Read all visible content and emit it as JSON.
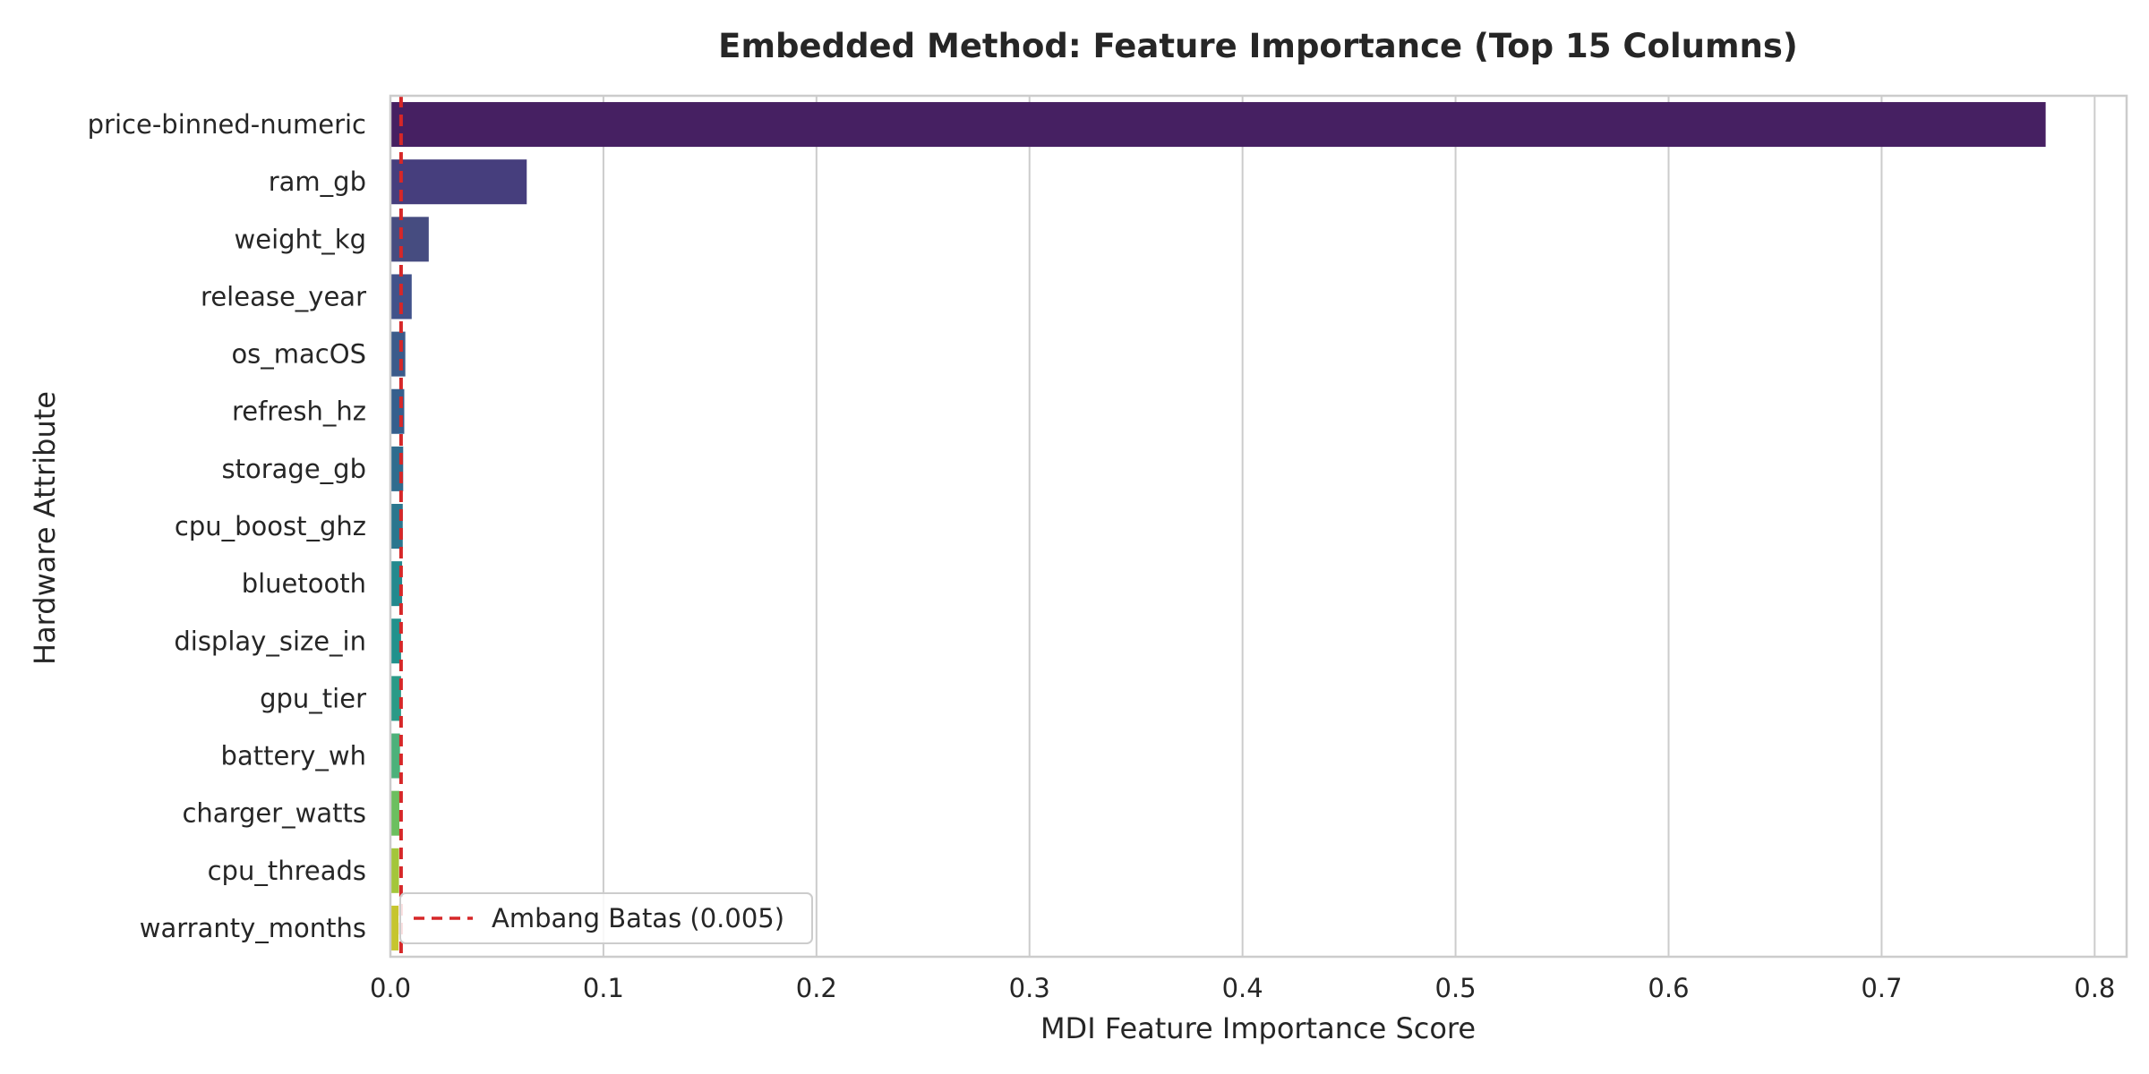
{
  "chart_data": {
    "type": "bar",
    "orientation": "horizontal",
    "title": "Embedded Method: Feature Importance (Top 15 Columns)",
    "xlabel": "MDI Feature Importance Score",
    "ylabel": "Hardware Attribute",
    "xlim": [
      0,
      0.815
    ],
    "xticks": [
      0.0,
      0.1,
      0.2,
      0.3,
      0.4,
      0.5,
      0.6,
      0.7,
      0.8
    ],
    "xtick_labels": [
      "0.0",
      "0.1",
      "0.2",
      "0.3",
      "0.4",
      "0.5",
      "0.6",
      "0.7",
      "0.8"
    ],
    "grid": "vertical",
    "categories": [
      "price-binned-numeric",
      "ram_gb",
      "weight_kg",
      "release_year",
      "os_macOS",
      "refresh_hz",
      "storage_gb",
      "cpu_boost_ghz",
      "bluetooth",
      "display_size_in",
      "gpu_tier",
      "battery_wh",
      "charger_watts",
      "cpu_threads",
      "warranty_months"
    ],
    "values": [
      0.777,
      0.064,
      0.018,
      0.01,
      0.007,
      0.0065,
      0.006,
      0.0058,
      0.0055,
      0.005,
      0.005,
      0.0045,
      0.0042,
      0.004,
      0.0038
    ],
    "colors": [
      "#462062",
      "#463e7d",
      "#464c80",
      "#41528a",
      "#3b5b8b",
      "#355f8d",
      "#2f6c8e",
      "#2a768e",
      "#23898e",
      "#21918c",
      "#2a9a87",
      "#4cb17a",
      "#6cbf5f",
      "#a3c63a",
      "#c6c52e"
    ],
    "threshold": {
      "value": 0.005,
      "color": "#d62728",
      "label": "Ambang Batas (0.005)"
    },
    "legend_position": "lower-left"
  }
}
